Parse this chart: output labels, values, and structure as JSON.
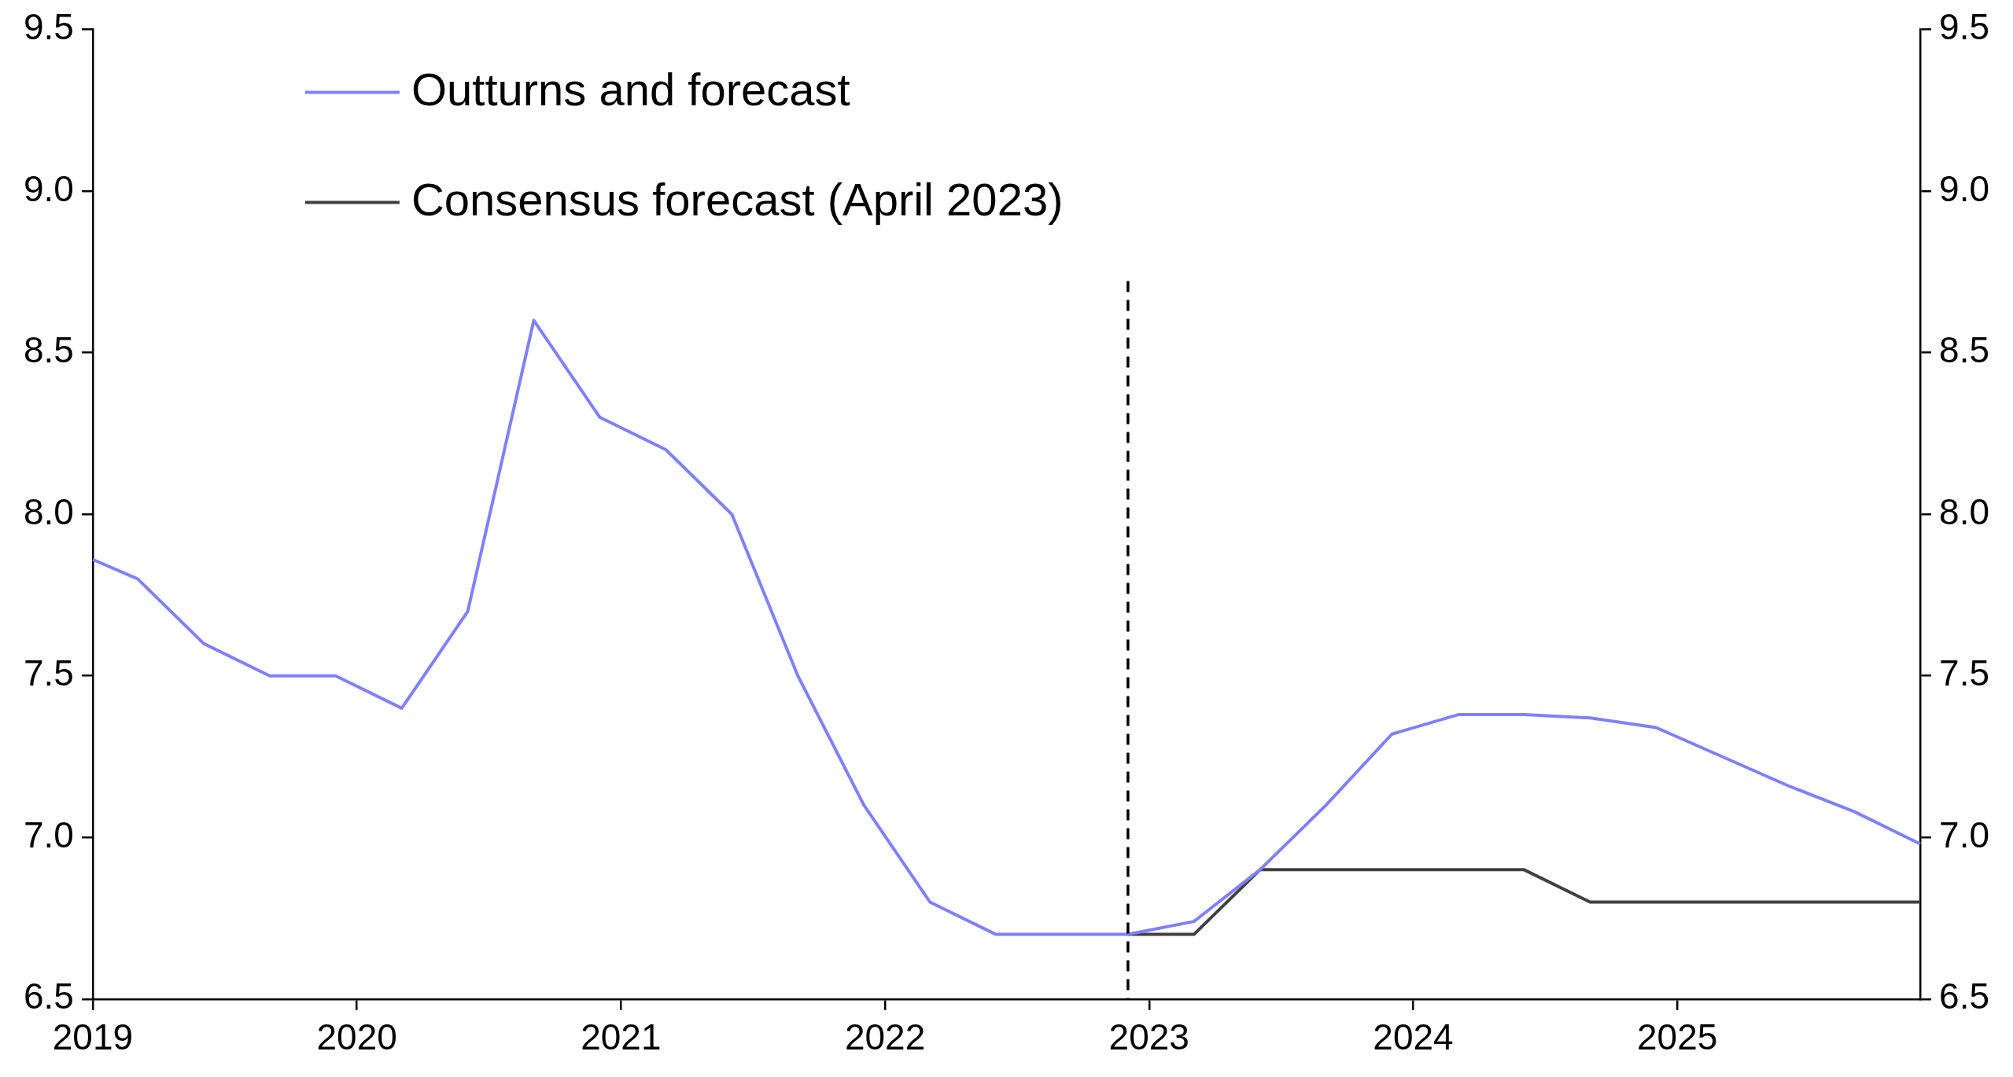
{
  "chart_data": {
    "type": "line",
    "legend": "top left",
    "grid": false,
    "marker": "none",
    "line_style": "solid",
    "xlim": [
      2019,
      2025.92
    ],
    "xticks": [
      2019,
      2020,
      2021,
      2022,
      2023,
      2024,
      2025
    ],
    "ylim": [
      6.5,
      9.5
    ],
    "yticks": [
      {
        "value": 6.5,
        "label": "6.5"
      },
      {
        "value": 7,
        "label": "7.0"
      },
      {
        "value": 7.5,
        "label": "7.5"
      },
      {
        "value": 8,
        "label": "8.0"
      },
      {
        "value": 8.5,
        "label": "8.5"
      },
      {
        "value": 9,
        "label": "9.0"
      },
      {
        "value": 9.5,
        "label": "9.5"
      }
    ],
    "y2lim": [
      6.5,
      9.5
    ],
    "y2ticks": [
      {
        "value": 6.5,
        "label": "6.5"
      },
      {
        "value": 7,
        "label": "7.0"
      },
      {
        "value": 7.5,
        "label": "7.5"
      },
      {
        "value": 8,
        "label": "8.0"
      },
      {
        "value": 8.5,
        "label": "8.5"
      },
      {
        "value": 9,
        "label": "9.0"
      },
      {
        "value": 9.5,
        "label": "9.5"
      }
    ],
    "ref_lines": [
      {
        "axis": "x",
        "value": 2022.92,
        "color": "#000000",
        "line_style": "dashed"
      }
    ],
    "series": [
      {
        "name": "Outturns and forecast",
        "color": "#8080ff",
        "x": [
          2019,
          2019.17,
          2019.42,
          2019.67,
          2019.92,
          2020.17,
          2020.42,
          2020.67,
          2020.92,
          2021.17,
          2021.42,
          2021.67,
          2021.92,
          2022.17,
          2022.42,
          2022.67,
          2022.92,
          2023.17,
          2023.42,
          2023.67,
          2023.92,
          2024.17,
          2024.42,
          2024.67,
          2024.92,
          2025.17,
          2025.42,
          2025.67,
          2025.92
        ],
        "values": [
          7.86,
          7.8,
          7.6,
          7.5,
          7.5,
          7.4,
          7.7,
          8.6,
          8.3,
          8.2,
          8.0,
          7.5,
          7.1,
          6.8,
          6.7,
          6.7,
          6.7,
          6.74,
          6.9,
          7.1,
          7.32,
          7.38,
          7.38,
          7.37,
          7.34,
          7.25,
          7.16,
          7.08,
          6.98
        ]
      },
      {
        "name": "Consensus forecast (April 2023)",
        "color": "#404040",
        "x": [
          2022.92,
          2023.17,
          2023.42,
          2023.67,
          2023.92,
          2024.17,
          2024.42,
          2024.67,
          2024.92,
          2025.17,
          2025.42,
          2025.67,
          2025.92
        ],
        "values": [
          6.7,
          6.7,
          6.9,
          6.9,
          6.9,
          6.9,
          6.9,
          6.8,
          6.8,
          6.8,
          6.8,
          6.8,
          6.8
        ]
      }
    ]
  }
}
